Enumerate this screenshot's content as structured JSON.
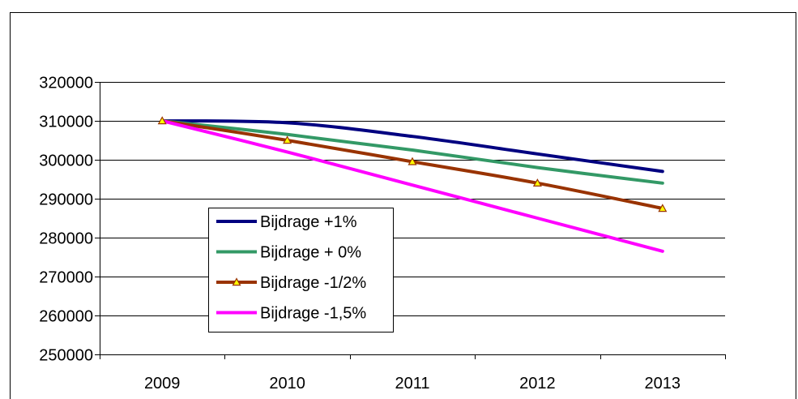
{
  "chart_data": {
    "type": "line",
    "categories": [
      "2009",
      "2010",
      "2011",
      "2012",
      "2013"
    ],
    "ylim": [
      250000,
      320000
    ],
    "yticks": [
      250000,
      260000,
      270000,
      280000,
      290000,
      300000,
      310000,
      320000
    ],
    "grid": true,
    "legend_position": "center-left",
    "series": [
      {
        "name": "Bijdrage +1%",
        "values": [
          310000,
          309500,
          306000,
          301500,
          297000
        ],
        "color": "#000080",
        "marker": "none"
      },
      {
        "name": "Bijdrage + 0%",
        "values": [
          310000,
          306500,
          302500,
          298000,
          294000
        ],
        "color": "#339966",
        "marker": "none"
      },
      {
        "name": "Bijdrage -1/2%",
        "values": [
          310000,
          305000,
          299500,
          294000,
          287500
        ],
        "color": "#993300",
        "marker": "triangle",
        "marker_fill": "#ffff00"
      },
      {
        "name": "Bijdrage -1,5%",
        "values": [
          310000,
          302000,
          293500,
          285000,
          276500
        ],
        "color": "#ff00ff",
        "marker": "none"
      }
    ]
  }
}
